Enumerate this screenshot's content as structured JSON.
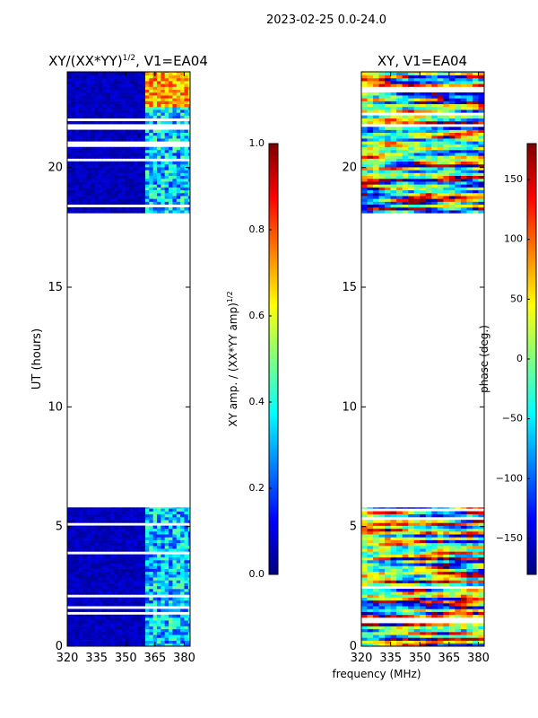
{
  "figure_title": "2023-02-25 0.0-24.0",
  "shared_xlabel": "frequency (MHz)",
  "colors": {
    "jet": [
      "#00007f",
      "#0000ff",
      "#007fff",
      "#00ffff",
      "#7fff7f",
      "#ffff00",
      "#ff7f00",
      "#ff0000",
      "#7f0000"
    ]
  },
  "chart_data": [
    {
      "type": "heatmap",
      "panel": "amplitude",
      "title": "XY/(XX*YY)",
      "title_superscript": "1/2",
      "title_suffix": ", V1=EA04",
      "xlabel": "",
      "ylabel": "UT (hours)",
      "xlim": [
        320,
        383
      ],
      "ylim": [
        0,
        24
      ],
      "xticks": [
        320,
        335,
        350,
        365,
        380
      ],
      "yticks": [
        0,
        5,
        10,
        15,
        20
      ],
      "data_ranges_hours": [
        [
          0,
          5.8
        ],
        [
          18.1,
          24
        ]
      ],
      "bright_band_MHz": [
        360,
        383
      ],
      "colorbar": {
        "label": "XY amp. / (XX*YY amp)",
        "label_superscript": "1/2",
        "range": [
          0.0,
          1.0
        ],
        "ticks": [
          "0.0",
          "0.2",
          "0.4",
          "0.6",
          "0.8",
          "1.0"
        ],
        "tick_values": [
          0.0,
          0.2,
          0.4,
          0.6,
          0.8,
          1.0
        ]
      }
    },
    {
      "type": "heatmap",
      "panel": "phase",
      "title": "XY, V1=EA04",
      "xlabel": "",
      "ylabel": "",
      "xlim": [
        320,
        383
      ],
      "ylim": [
        0,
        24
      ],
      "xticks": [
        320,
        335,
        350,
        365,
        380
      ],
      "yticks": [
        0,
        5,
        10,
        15,
        20
      ],
      "data_ranges_hours": [
        [
          0,
          5.8
        ],
        [
          18.1,
          24
        ]
      ],
      "colorbar": {
        "label": "phase (deg.)",
        "range": [
          -180,
          180
        ],
        "ticks": [
          "−150",
          "−100",
          "−50",
          "0",
          "50",
          "100",
          "150"
        ],
        "tick_values": [
          -150,
          -100,
          -50,
          0,
          50,
          100,
          150
        ]
      }
    }
  ]
}
